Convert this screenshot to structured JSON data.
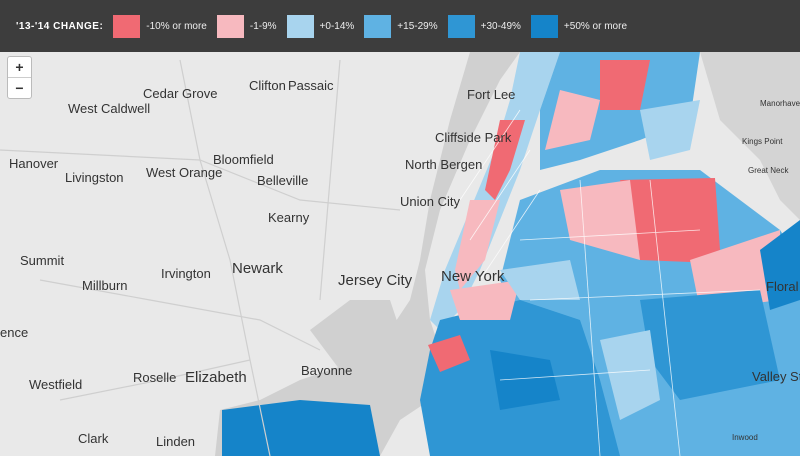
{
  "legend": {
    "title": "'13-'14 CHANGE:",
    "items": [
      {
        "label": "-10% or more",
        "color": "#f06a73"
      },
      {
        "label": "-1-9%",
        "color": "#f7b9bf"
      },
      {
        "label": "+0-14%",
        "color": "#a8d4ee"
      },
      {
        "label": "+15-29%",
        "color": "#5fb2e3"
      },
      {
        "label": "+30-49%",
        "color": "#2f96d4"
      },
      {
        "label": "+50% or more",
        "color": "#1584c9"
      }
    ]
  },
  "zoom": {
    "in_label": "+",
    "out_label": "−"
  },
  "map": {
    "places": [
      {
        "name": "Clifton"
      },
      {
        "name": "Passaic"
      },
      {
        "name": "Cedar Grove"
      },
      {
        "name": "West Caldwell"
      },
      {
        "name": "Fort Lee"
      },
      {
        "name": "Cliffside Park"
      },
      {
        "name": "Manorhave"
      },
      {
        "name": "Kings Point"
      },
      {
        "name": "Great Neck"
      },
      {
        "name": "Hanover"
      },
      {
        "name": "Livingston"
      },
      {
        "name": "West Orange"
      },
      {
        "name": "Bloomfield"
      },
      {
        "name": "Belleville"
      },
      {
        "name": "North Bergen"
      },
      {
        "name": "Union City"
      },
      {
        "name": "Kearny"
      },
      {
        "name": "Summit"
      },
      {
        "name": "Irvington"
      },
      {
        "name": "Newark"
      },
      {
        "name": "Jersey City"
      },
      {
        "name": "New York"
      },
      {
        "name": "Millburn"
      },
      {
        "name": "ence"
      },
      {
        "name": "Floral P"
      },
      {
        "name": "Westfield"
      },
      {
        "name": "Roselle"
      },
      {
        "name": "Elizabeth"
      },
      {
        "name": "Bayonne"
      },
      {
        "name": "Valley St"
      },
      {
        "name": "Clark"
      },
      {
        "name": "Linden"
      },
      {
        "name": "Inwood"
      }
    ]
  }
}
